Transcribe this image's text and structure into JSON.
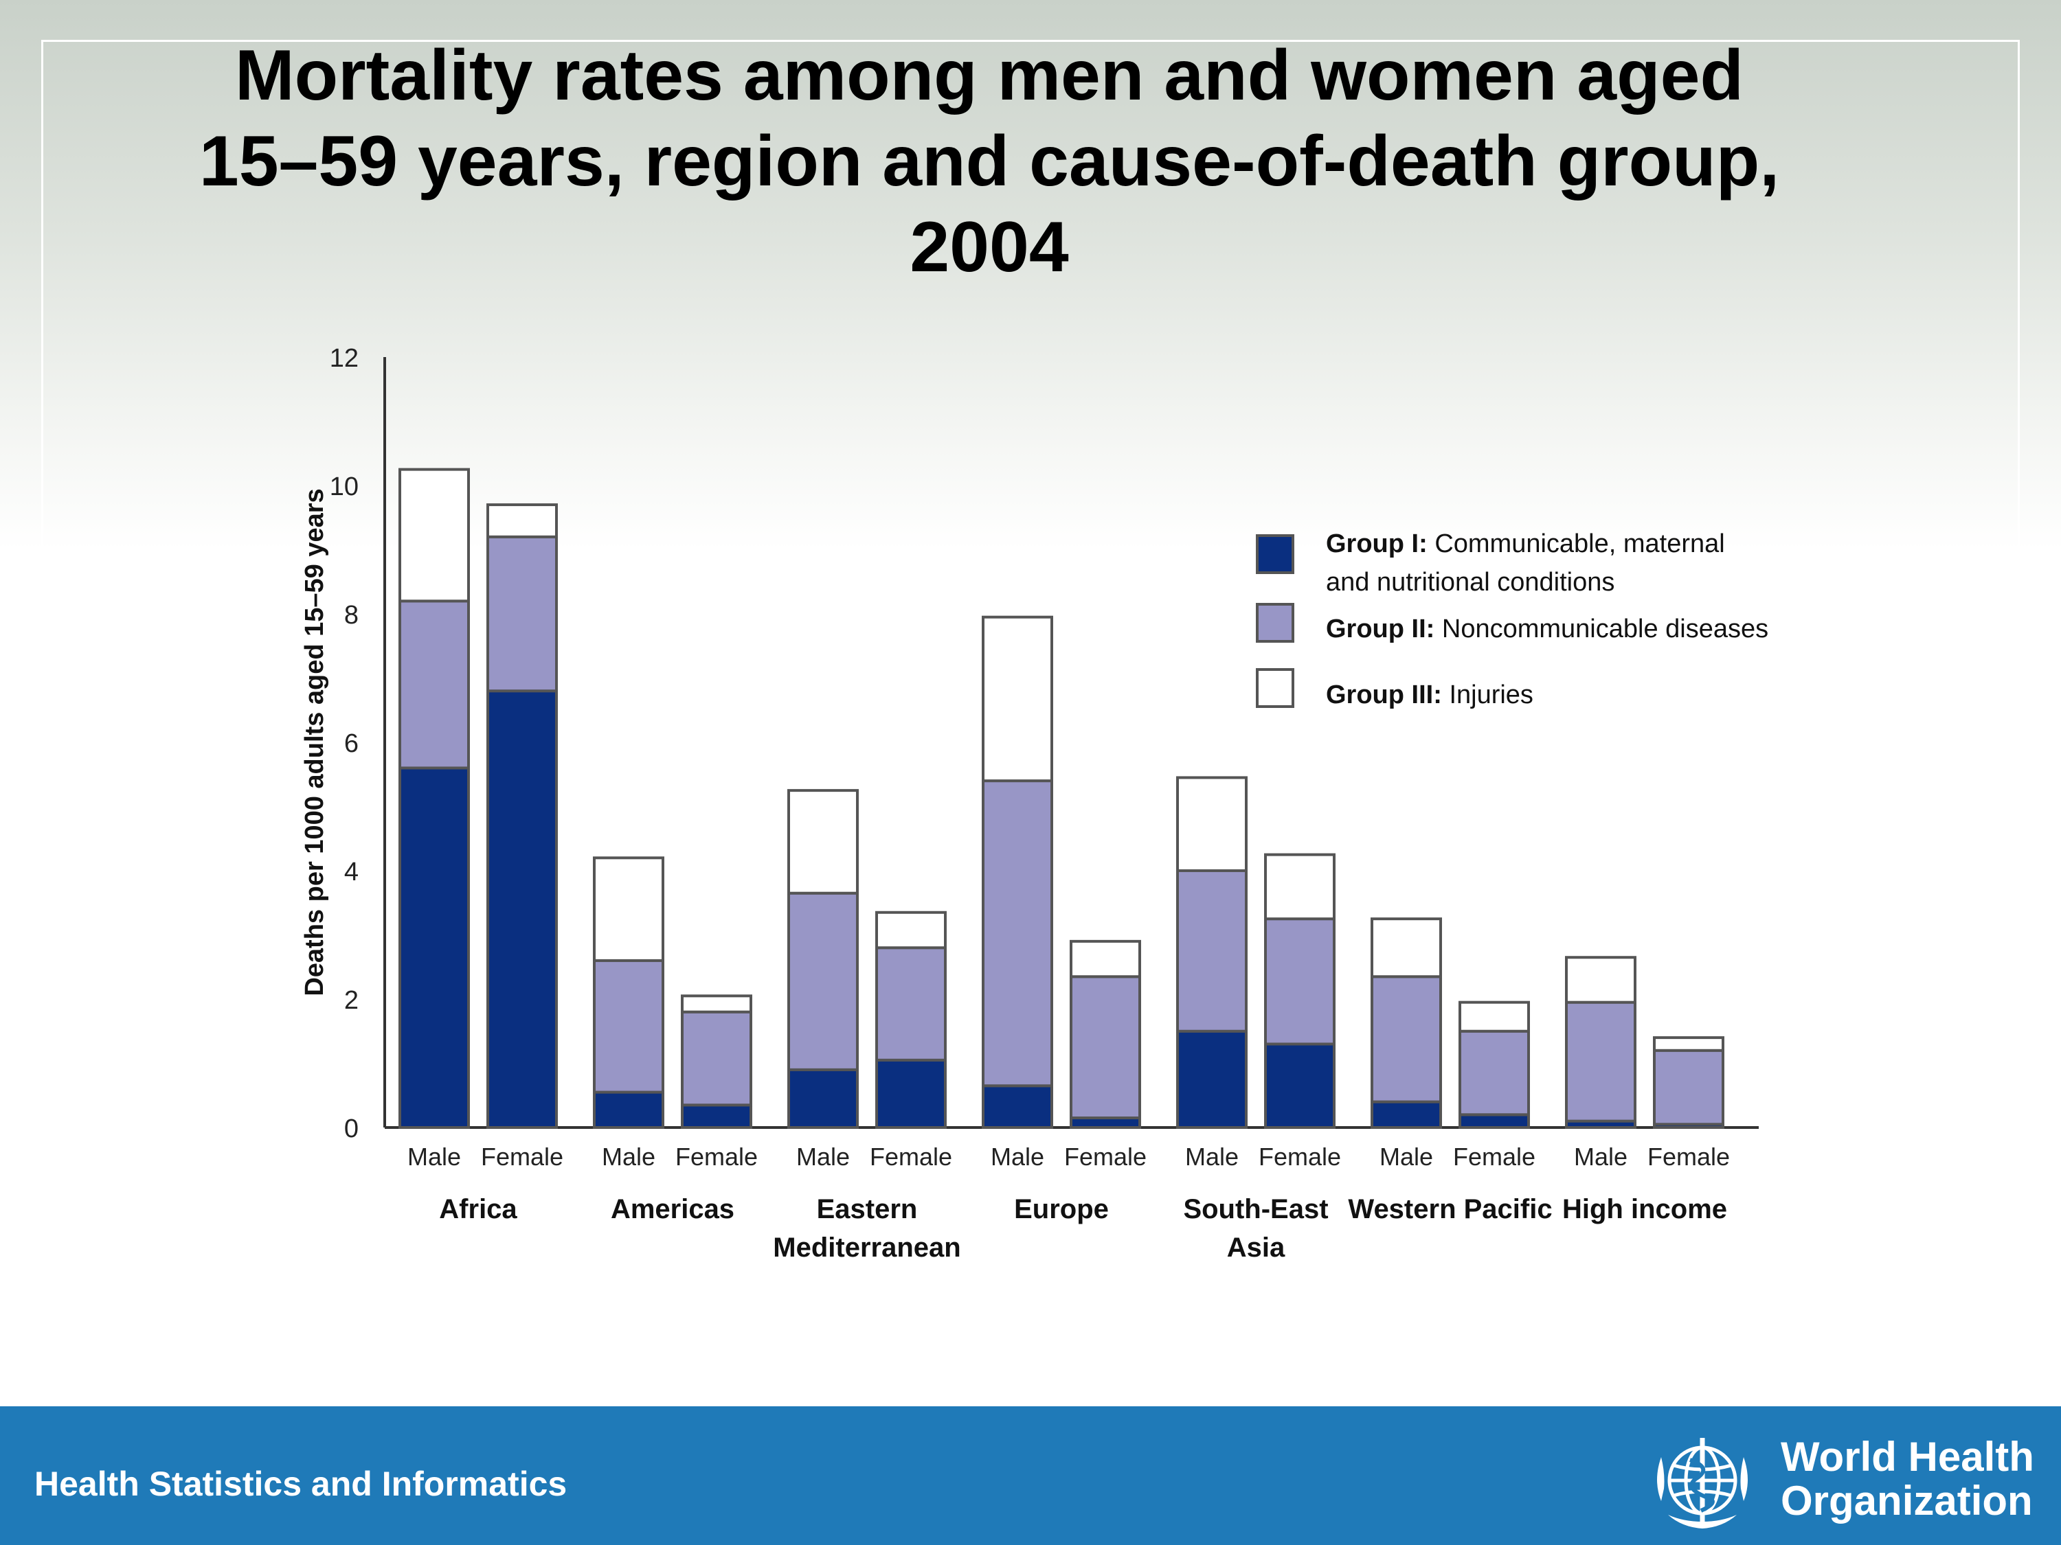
{
  "slide": {
    "title_lines": [
      "Mortality rates among men and women aged",
      "15–59 years, region and cause-of-death group,",
      "2004"
    ],
    "footer_text": "Health Statistics and Informatics",
    "org_name_lines": [
      "World Health",
      "Organization"
    ],
    "colors": {
      "footer_bg": "#1f7ab8",
      "group1": "#0a2f80",
      "group2": "#9896c6",
      "group3": "#ffffff",
      "bar_outline": "#555555"
    }
  },
  "chart_data": {
    "type": "bar",
    "stacked": true,
    "title": "Mortality rates among men and women aged 15–59 years, region and cause-of-death group, 2004",
    "ylabel": "Deaths per 1000 adults aged 15–59 years",
    "ylim": [
      0,
      12
    ],
    "yticks": [
      0,
      2,
      4,
      6,
      8,
      10,
      12
    ],
    "grid": false,
    "legend_position": "top-right",
    "groups": [
      {
        "name": "Africa",
        "label_lines": [
          "Africa"
        ],
        "categories": [
          "Male",
          "Female"
        ]
      },
      {
        "name": "Americas",
        "label_lines": [
          "Americas"
        ],
        "categories": [
          "Male",
          "Female"
        ]
      },
      {
        "name": "Eastern Mediterranean",
        "label_lines": [
          "Eastern",
          "Mediterranean"
        ],
        "categories": [
          "Male",
          "Female"
        ]
      },
      {
        "name": "Europe",
        "label_lines": [
          "Europe"
        ],
        "categories": [
          "Male",
          "Female"
        ]
      },
      {
        "name": "South-East Asia",
        "label_lines": [
          "South-East",
          "Asia"
        ],
        "categories": [
          "Male",
          "Female"
        ]
      },
      {
        "name": "Western Pacific",
        "label_lines": [
          "Western Pacific"
        ],
        "categories": [
          "Male",
          "Female"
        ]
      },
      {
        "name": "High income",
        "label_lines": [
          "High income"
        ],
        "categories": [
          "Male",
          "Female"
        ]
      }
    ],
    "series": [
      {
        "name": "Group I: Communicable, maternal and nutritional conditions",
        "legend_bold": "Group I:",
        "legend_lines": [
          "Communicable, maternal",
          "and nutritional conditions"
        ],
        "values": [
          5.6,
          6.8,
          0.55,
          0.35,
          0.9,
          1.05,
          0.65,
          0.15,
          1.5,
          1.3,
          0.4,
          0.2,
          0.1,
          0.05
        ]
      },
      {
        "name": "Group II: Noncommunicable diseases",
        "legend_bold": "Group II:",
        "legend_lines": [
          "Noncommunicable diseases"
        ],
        "values": [
          2.6,
          2.4,
          2.05,
          1.45,
          2.75,
          1.75,
          4.75,
          2.2,
          2.5,
          1.95,
          1.95,
          1.3,
          1.85,
          1.15
        ]
      },
      {
        "name": "Group III: Injuries",
        "legend_bold": "Group III:",
        "legend_lines": [
          "Injuries"
        ],
        "values": [
          2.05,
          0.5,
          1.6,
          0.25,
          1.6,
          0.55,
          2.55,
          0.55,
          1.45,
          1.0,
          0.9,
          0.45,
          0.7,
          0.2
        ]
      }
    ]
  }
}
